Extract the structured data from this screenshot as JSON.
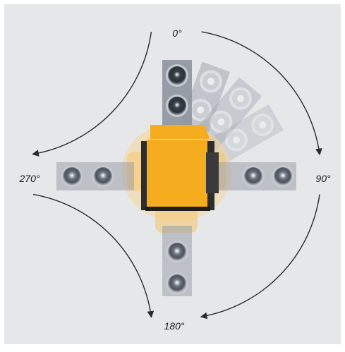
{
  "diagram": {
    "labels": {
      "top": "0°",
      "right": "90°",
      "bottom": "180°",
      "left": "270°"
    },
    "colors": {
      "background": "#e6e7e9",
      "frame": "#ffffff",
      "body": "#f5ac1e",
      "body_ghost": "#f6d79a",
      "housing": "#2d2d2d",
      "arrow": "#2a2a2a",
      "sensor_dark": "#404651",
      "sensor_ring": "#c5c9cf",
      "cable": "#8f96a0"
    },
    "sensor_positions": [
      "0°",
      "22.5°",
      "45°",
      "67.5°",
      "90°",
      "180°",
      "270°"
    ]
  }
}
